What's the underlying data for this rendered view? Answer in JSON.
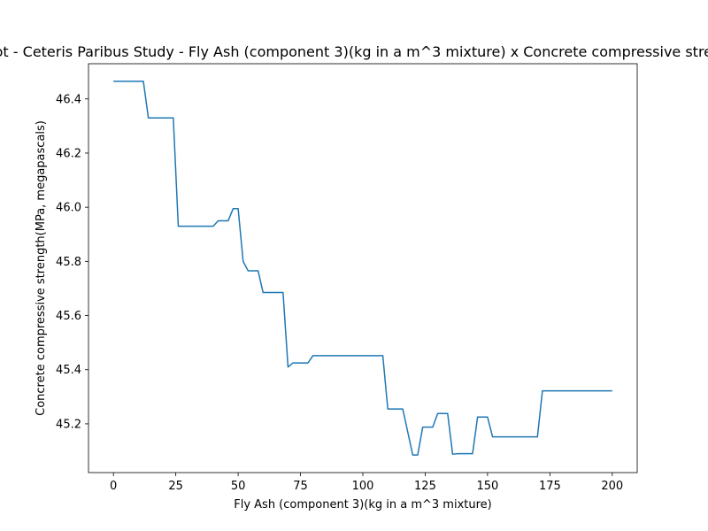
{
  "chart_data": {
    "type": "line",
    "title": "Partial Dependence Plot - Ceteris Paribus Study - Fly Ash (component 3)(kg in a m^3 mixture) x Concrete compressive strength(MPa, megapascals)",
    "xlabel": "Fly Ash (component 3)(kg in a m^3 mixture)",
    "ylabel": "Concrete compressive strength(MPa, megapascals)",
    "xlim": [
      -10,
      210
    ],
    "ylim": [
      45.02,
      46.53
    ],
    "xticks": [
      0,
      25,
      50,
      75,
      100,
      125,
      150,
      175,
      200
    ],
    "yticks": [
      45.2,
      45.4,
      45.6,
      45.8,
      46.0,
      46.2,
      46.4
    ],
    "grid": false,
    "color": "#1f77b4",
    "series": [
      {
        "x": [
          0,
          12,
          14,
          24,
          26,
          40,
          42,
          46,
          48,
          50,
          52,
          54,
          58,
          60,
          68,
          70,
          72,
          78,
          80,
          108,
          110,
          116,
          118,
          120,
          122,
          124,
          128,
          130,
          134,
          136,
          138,
          144,
          146,
          150,
          152,
          168,
          170,
          172,
          200
        ],
        "y": [
          46.465,
          46.465,
          46.33,
          46.33,
          45.93,
          45.93,
          45.95,
          45.95,
          45.995,
          45.995,
          45.8,
          45.765,
          45.765,
          45.685,
          45.685,
          45.41,
          45.425,
          45.425,
          45.452,
          45.452,
          45.255,
          45.255,
          45.17,
          45.085,
          45.085,
          45.188,
          45.188,
          45.238,
          45.238,
          45.088,
          45.09,
          45.09,
          45.225,
          45.225,
          45.152,
          45.152,
          45.152,
          45.322,
          45.322
        ]
      }
    ]
  }
}
